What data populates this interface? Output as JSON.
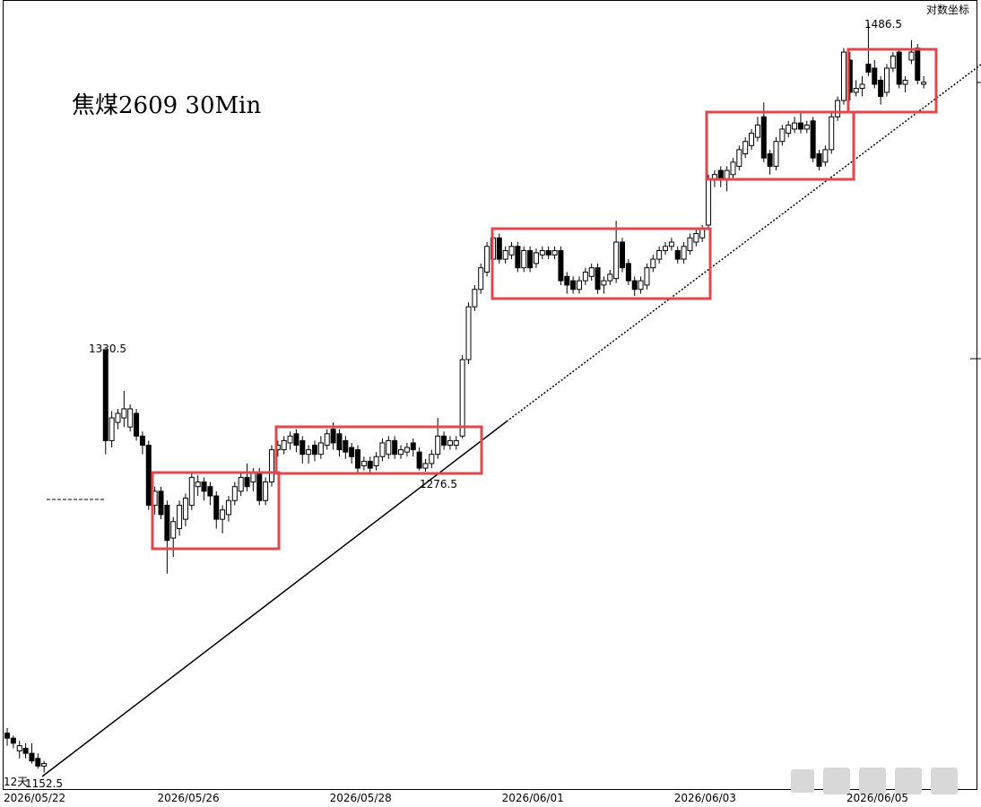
{
  "chart_data": {
    "type": "candlestick",
    "title": "焦煤2609 30Min",
    "scale_label": "对数坐标",
    "log_scale": true,
    "annotations": [
      "1330.5",
      "1486.5",
      "1276.5",
      "12天",
      "1152.5"
    ],
    "up_color": "#ffffff",
    "down_color": "#000000",
    "edge_color": "#000000",
    "ylim": [
      1146,
      1496
    ],
    "categories": [
      "2026/05/22",
      null,
      null,
      null,
      null,
      null,
      null,
      null,
      null,
      null,
      null,
      null,
      null,
      null,
      null,
      null,
      null,
      null,
      null,
      null,
      null,
      null,
      null,
      null,
      null,
      "2026/05/26",
      null,
      null,
      null,
      null,
      null,
      null,
      null,
      null,
      null,
      null,
      null,
      null,
      null,
      null,
      null,
      null,
      null,
      null,
      null,
      null,
      null,
      null,
      null,
      null,
      null,
      null,
      null,
      "2026/05/28",
      null,
      null,
      null,
      null,
      null,
      null,
      null,
      null,
      null,
      null,
      null,
      null,
      null,
      null,
      null,
      null,
      null,
      null,
      null,
      null,
      null,
      null,
      null,
      null,
      null,
      null,
      null,
      "2026/06/01",
      null,
      null,
      null,
      null,
      null,
      null,
      null,
      null,
      null,
      null,
      null,
      null,
      null,
      null,
      null,
      null,
      null,
      null,
      null,
      null,
      null,
      null,
      null,
      null,
      null,
      null,
      null,
      "2026/06/03",
      null,
      null,
      null,
      null,
      null,
      null,
      null,
      null,
      null,
      null,
      null,
      null,
      null,
      null,
      null,
      null,
      null,
      null,
      null,
      null,
      null,
      null,
      null,
      null,
      null,
      null,
      null,
      "2026/06/05",
      null,
      null,
      null,
      null,
      null,
      null,
      null,
      null,
      null,
      null,
      null,
      null
    ],
    "open": [
      1168,
      1166,
      1161,
      1162,
      1160,
      1158,
      1155,
      null,
      null,
      null,
      null,
      null,
      null,
      null,
      null,
      null,
      1330.5,
      1290,
      1298,
      1300,
      1296,
      1302,
      1292,
      1288,
      1262,
      1268,
      1262,
      1248,
      1252,
      1256,
      1262,
      1270,
      1272,
      1270,
      1266,
      1256,
      1258,
      1264,
      1268,
      1274,
      1272,
      1276,
      1264,
      1272,
      1286,
      1286,
      1289,
      1293,
      1290,
      1284,
      1288,
      1284,
      1288,
      1295,
      1293,
      1290,
      1287,
      1286,
      1279,
      1281,
      1279,
      1283,
      1284,
      1290,
      1284,
      1285,
      1289,
      1285,
      1278,
      1280,
      1284,
      1292,
      1288,
      1288,
      1292,
      1326,
      1350,
      1358,
      1366,
      1372,
      1382,
      1372,
      1374,
      1378,
      1368,
      1376,
      1370,
      1374,
      1376,
      1374,
      1376,
      1364,
      1362,
      1358,
      1362,
      1364,
      1368,
      1360,
      1362,
      1363,
      1380,
      1370,
      1362,
      1358,
      1360,
      1368,
      1372,
      1376,
      1378,
      1376,
      1372,
      1376,
      1380,
      1382,
      1388,
      1410,
      1414,
      1410,
      1412,
      1416,
      1422,
      1426,
      1430,
      1440,
      1422,
      1416,
      1428,
      1432,
      1434,
      1437,
      1434,
      1438,
      1422,
      1418,
      1424,
      1440,
      1448,
      1468,
      1452,
      1454,
      1466,
      1464,
      1458,
      1452,
      1464,
      1472,
      1456,
      1468,
      1474,
      1456
    ],
    "high": [
      1170,
      1167,
      1165,
      1164,
      1164,
      1160,
      1157,
      null,
      null,
      null,
      null,
      null,
      null,
      null,
      null,
      null,
      1330.5,
      1303,
      1304,
      1312,
      1306,
      1304,
      1294,
      1290,
      1270,
      1270,
      1264,
      1257,
      1264,
      1267,
      1276,
      1275,
      1274,
      1272,
      1268,
      1262,
      1266,
      1272,
      1276,
      1280,
      1278,
      1278,
      1274,
      1288,
      1290,
      1292,
      1294,
      1295,
      1292,
      1288,
      1290,
      1292,
      1295,
      1298,
      1295,
      1292,
      1289,
      1288,
      1283,
      1283,
      1285,
      1291,
      1292,
      1292,
      1288,
      1289,
      1291,
      1287,
      1282,
      1286,
      1300,
      1294,
      1292,
      1292,
      1328,
      1352,
      1360,
      1370,
      1380,
      1386,
      1384,
      1378,
      1380,
      1380,
      1378,
      1378,
      1377,
      1378,
      1378,
      1378,
      1378,
      1366,
      1364,
      1364,
      1368,
      1370,
      1370,
      1364,
      1367,
      1390,
      1382,
      1372,
      1364,
      1364,
      1370,
      1374,
      1378,
      1380,
      1382,
      1378,
      1380,
      1384,
      1386,
      1388,
      1412,
      1414,
      1416,
      1416,
      1420,
      1426,
      1430,
      1434,
      1440,
      1447,
      1424,
      1430,
      1436,
      1438,
      1440,
      1442,
      1438,
      1440,
      1424,
      1426,
      1442,
      1450,
      1474,
      1472,
      1458,
      1460,
      1486.5,
      1468,
      1460,
      1466,
      1472,
      1474,
      1460,
      1478,
      1476,
      1460
    ],
    "low": [
      1163,
      1162,
      1158,
      1158,
      1156,
      1154,
      1152.5,
      null,
      null,
      null,
      null,
      null,
      null,
      null,
      null,
      null,
      1284,
      1287,
      1295,
      1296,
      1294,
      1290,
      1284,
      1260,
      1258,
      1256,
      1233,
      1240,
      1249,
      1253,
      1260,
      1266,
      1264,
      1262,
      1252,
      1250,
      1255,
      1262,
      1266,
      1268,
      1268,
      1262,
      1262,
      1270,
      1283,
      1284,
      1286,
      1285,
      1280,
      1280,
      1281,
      1282,
      1286,
      1286,
      1283,
      1282,
      1280,
      1276,
      1277,
      1276,
      1277,
      1281,
      1282,
      1282,
      1282,
      1283,
      1283,
      1277,
      1276.5,
      1278,
      1282,
      1286,
      1286,
      1286,
      1291,
      1324,
      1348,
      1356,
      1364,
      1370,
      1370,
      1370,
      1372,
      1366,
      1366,
      1366,
      1368,
      1372,
      1372,
      1372,
      1360,
      1356,
      1356,
      1356,
      1360,
      1362,
      1356,
      1356,
      1360,
      1361,
      1366,
      1360,
      1355,
      1356,
      1358,
      1366,
      1370,
      1374,
      1376,
      1370,
      1370,
      1374,
      1378,
      1380,
      1387,
      1406,
      1406,
      1404,
      1410,
      1414,
      1420,
      1424,
      1428,
      1418,
      1412,
      1414,
      1426,
      1430,
      1432,
      1432,
      1432,
      1418,
      1414,
      1416,
      1422,
      1438,
      1446,
      1448,
      1450,
      1450,
      1460,
      1454,
      1446,
      1450,
      1462,
      1454,
      1452,
      1466,
      1456,
      1454
    ],
    "close": [
      1166,
      1164,
      1163,
      1160,
      1157,
      1155,
      1156,
      null,
      null,
      null,
      null,
      null,
      null,
      null,
      null,
      null,
      1290,
      1300,
      1302,
      1304,
      1304,
      1292,
      1288,
      1262,
      1268,
      1258,
      1247,
      1255,
      1262,
      1265,
      1274,
      1272,
      1268,
      1266,
      1256,
      1260,
      1264,
      1270,
      1274,
      1270,
      1276,
      1264,
      1272,
      1286,
      1288,
      1290,
      1292,
      1288,
      1284,
      1286,
      1284,
      1289,
      1293,
      1289,
      1286,
      1285,
      1283,
      1278,
      1281,
      1278,
      1283,
      1289,
      1290,
      1284,
      1286,
      1287,
      1286,
      1278,
      1280,
      1284,
      1292,
      1288,
      1290,
      1290,
      1326,
      1350,
      1358,
      1368,
      1378,
      1382,
      1372,
      1376,
      1378,
      1368,
      1376,
      1368,
      1375,
      1376,
      1374,
      1376,
      1362,
      1360,
      1358,
      1362,
      1366,
      1368,
      1358,
      1362,
      1365,
      1380,
      1368,
      1362,
      1358,
      1362,
      1368,
      1372,
      1376,
      1378,
      1380,
      1372,
      1378,
      1382,
      1384,
      1386,
      1410,
      1412,
      1410,
      1414,
      1418,
      1424,
      1428,
      1432,
      1436,
      1420,
      1416,
      1428,
      1434,
      1436,
      1437,
      1434,
      1436,
      1420,
      1416,
      1424,
      1440,
      1448,
      1472,
      1452,
      1454,
      1456,
      1462,
      1456,
      1450,
      1464,
      1470,
      1456,
      1458,
      1472,
      1458,
      1457
    ]
  }
}
